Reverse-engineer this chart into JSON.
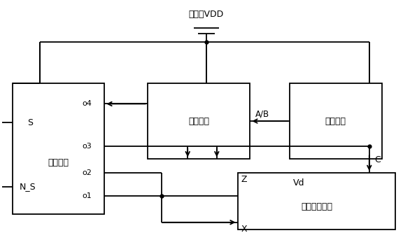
{
  "bg_color": "#ffffff",
  "line_color": "#000000",
  "fig_width": 5.86,
  "fig_height": 3.53,
  "dpi": 100,
  "title": "电流源VDD",
  "label_feedback": "反馈电路",
  "label_current": "电流电路",
  "label_startup": "启动电路",
  "label_bandgap": "带隙基准电路"
}
